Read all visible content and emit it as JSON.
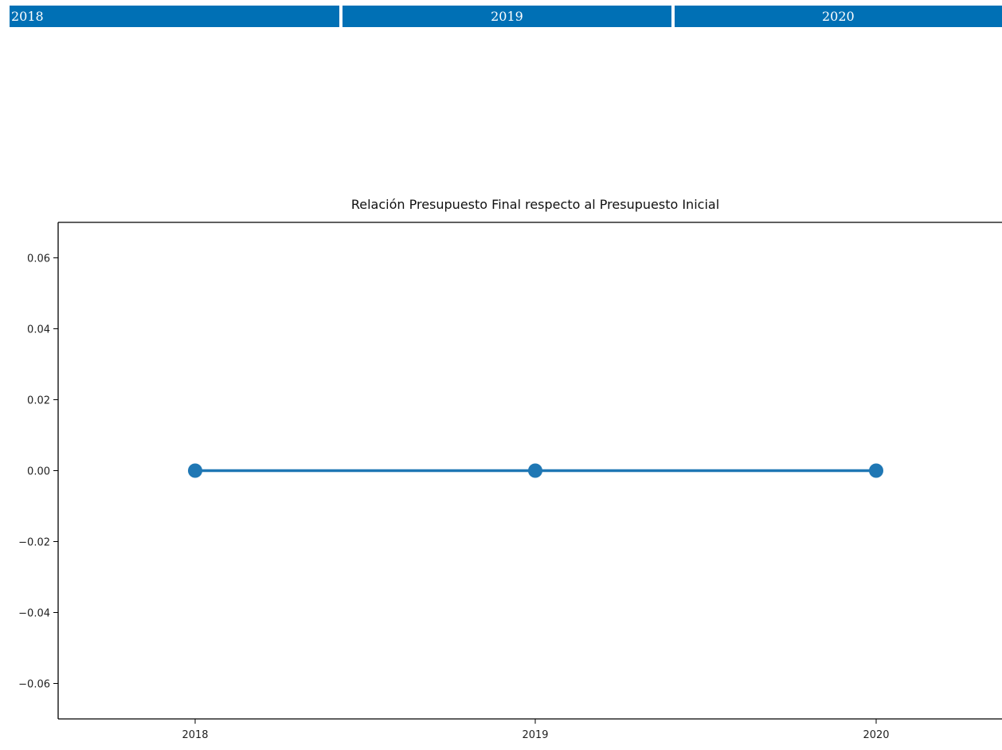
{
  "header": {
    "cells": [
      "2018",
      "2019",
      "2020"
    ]
  },
  "chart_data": {
    "type": "line",
    "title": "Relación Presupuesto Final respecto al Presupuesto Inicial",
    "xlabel": "",
    "ylabel": "",
    "categories": [
      "2018",
      "2019",
      "2020"
    ],
    "series": [
      {
        "values": [
          0.0,
          0.0,
          0.0
        ]
      }
    ],
    "ylim": [
      -0.07,
      0.07
    ],
    "yticks": [
      "0.06",
      "0.04",
      "0.02",
      "0.00",
      "−0.02",
      "−0.04",
      "−0.06"
    ],
    "ytick_values": [
      0.06,
      0.04,
      0.02,
      0.0,
      -0.02,
      -0.04,
      -0.06
    ],
    "grid": false,
    "legend": "none",
    "line_color": "#1f77b4"
  }
}
